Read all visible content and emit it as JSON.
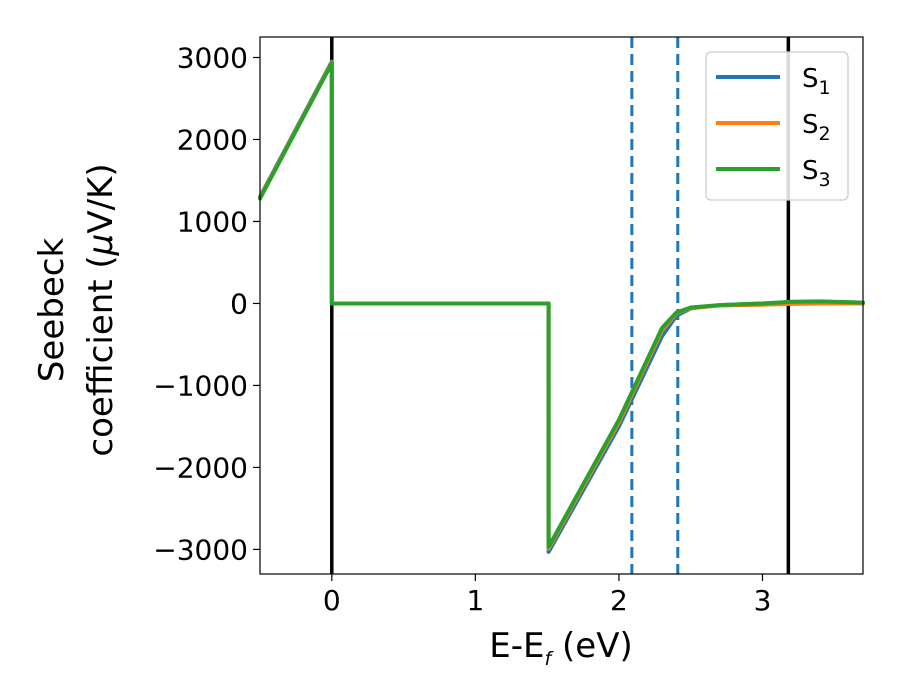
{
  "chart_data": {
    "type": "line",
    "title": "",
    "xlabel": "E-E",
    "xlabel_sub": "f",
    "xlabel_unit": "(eV)",
    "ylabel_line1": "Seebeck",
    "ylabel_line2": "coefficient  (",
    "ylabel_mu": "μ",
    "ylabel_unit_end": "V/K)",
    "xlim": [
      -0.5,
      3.7
    ],
    "ylim": [
      -3300,
      3250
    ],
    "xticks": [
      0,
      1,
      2,
      3
    ],
    "xtick_labels": [
      "0",
      "1",
      "2",
      "3"
    ],
    "yticks": [
      3000,
      2000,
      1000,
      0,
      -1000,
      -2000,
      -3000
    ],
    "ytick_labels": [
      "3000",
      "2000",
      "1000",
      "0",
      "−1000",
      "−2000",
      "−3000"
    ],
    "grid": false,
    "legend_position": "top-right",
    "series": [
      {
        "name": "S",
        "sub": "1",
        "color": "#1f77b4",
        "x": [
          -0.5,
          0.0,
          0.0,
          1.51,
          1.51,
          2.0,
          2.3,
          2.4,
          2.5,
          2.7,
          3.0,
          3.2,
          3.4,
          3.7
        ],
        "y": [
          1300,
          2950,
          0,
          0,
          -3030,
          -1500,
          -400,
          -150,
          -60,
          -20,
          0,
          15,
          20,
          10
        ]
      },
      {
        "name": "S",
        "sub": "2",
        "color": "#ff7f0e",
        "x": [
          -0.5,
          0.0,
          0.0,
          1.51,
          1.51,
          2.0,
          2.3,
          2.4,
          2.5,
          2.7,
          3.0,
          3.2,
          3.4,
          3.7
        ],
        "y": [
          1290,
          2940,
          0,
          0,
          -2990,
          -1450,
          -330,
          -120,
          -55,
          -25,
          -15,
          -5,
          0,
          0
        ]
      },
      {
        "name": "S",
        "sub": "3",
        "color": "#2ca02c",
        "x": [
          -0.5,
          0.0,
          0.0,
          1.51,
          1.51,
          2.0,
          2.3,
          2.4,
          2.5,
          2.7,
          3.0,
          3.2,
          3.4,
          3.7
        ],
        "y": [
          1280,
          2930,
          0,
          0,
          -2970,
          -1420,
          -300,
          -110,
          -50,
          -20,
          0,
          20,
          25,
          10
        ]
      }
    ],
    "vlines": [
      {
        "x": 0.0,
        "color": "#000000",
        "style": "solid"
      },
      {
        "x": 2.09,
        "color": "#1f77b4",
        "style": "dashed"
      },
      {
        "x": 2.41,
        "color": "#1f77b4",
        "style": "dashed"
      },
      {
        "x": 3.18,
        "color": "#000000",
        "style": "solid"
      }
    ]
  }
}
